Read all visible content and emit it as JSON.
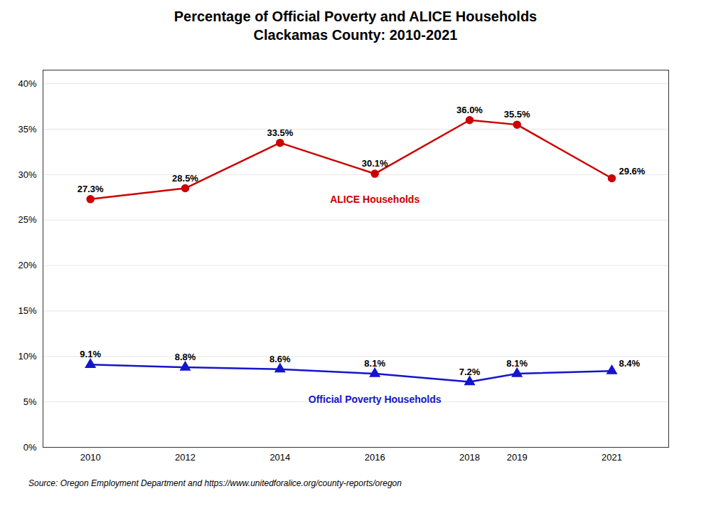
{
  "chart_data": {
    "type": "line",
    "title": "Percentage of Official Poverty and ALICE Households",
    "subtitle": "Clackamas County: 2010-2021",
    "caption": "Source: Oregon Employment Department and https://www.unitedforalice.org/county-reports/oregon",
    "x": [
      2010,
      2012,
      2014,
      2016,
      2018,
      2019,
      2021
    ],
    "series": [
      {
        "name": "ALICE Households",
        "color": "#CC0000",
        "marker": "circle",
        "line_style": "solid",
        "values": [
          0.273,
          0.285,
          0.335,
          0.301,
          0.36,
          0.355,
          0.296
        ],
        "value_labels": [
          "27.3%",
          "28.5%",
          "33.5%",
          "30.1%",
          "36.0%",
          "35.5%",
          "29.6%"
        ]
      },
      {
        "name": "Official Poverty Households",
        "color": "#1515CC",
        "marker": "triangle",
        "line_style": "solid",
        "values": [
          0.091,
          0.088,
          0.086,
          0.081,
          0.072,
          0.081,
          0.084
        ],
        "value_labels": [
          "9.1%",
          "8.8%",
          "8.6%",
          "8.1%",
          "7.2%",
          "8.1%",
          "8.4%"
        ]
      }
    ],
    "xlim": [
      2009.0,
      2022.2
    ],
    "xticks": [
      2010,
      2012,
      2014,
      2016,
      2018,
      2019,
      2021
    ],
    "ylim": [
      0.0,
      0.415
    ],
    "yticks": [
      {
        "value": 0.0,
        "label": "0%"
      },
      {
        "value": 0.05,
        "label": "5%"
      },
      {
        "value": 0.1,
        "label": "10%"
      },
      {
        "value": 0.15,
        "label": "15%"
      },
      {
        "value": 0.2,
        "label": "20%"
      },
      {
        "value": 0.25,
        "label": "25%"
      },
      {
        "value": 0.3,
        "label": "30%"
      },
      {
        "value": 0.35,
        "label": "35%"
      },
      {
        "value": 0.4,
        "label": "40%"
      }
    ],
    "grid": true,
    "data_labels": true
  }
}
